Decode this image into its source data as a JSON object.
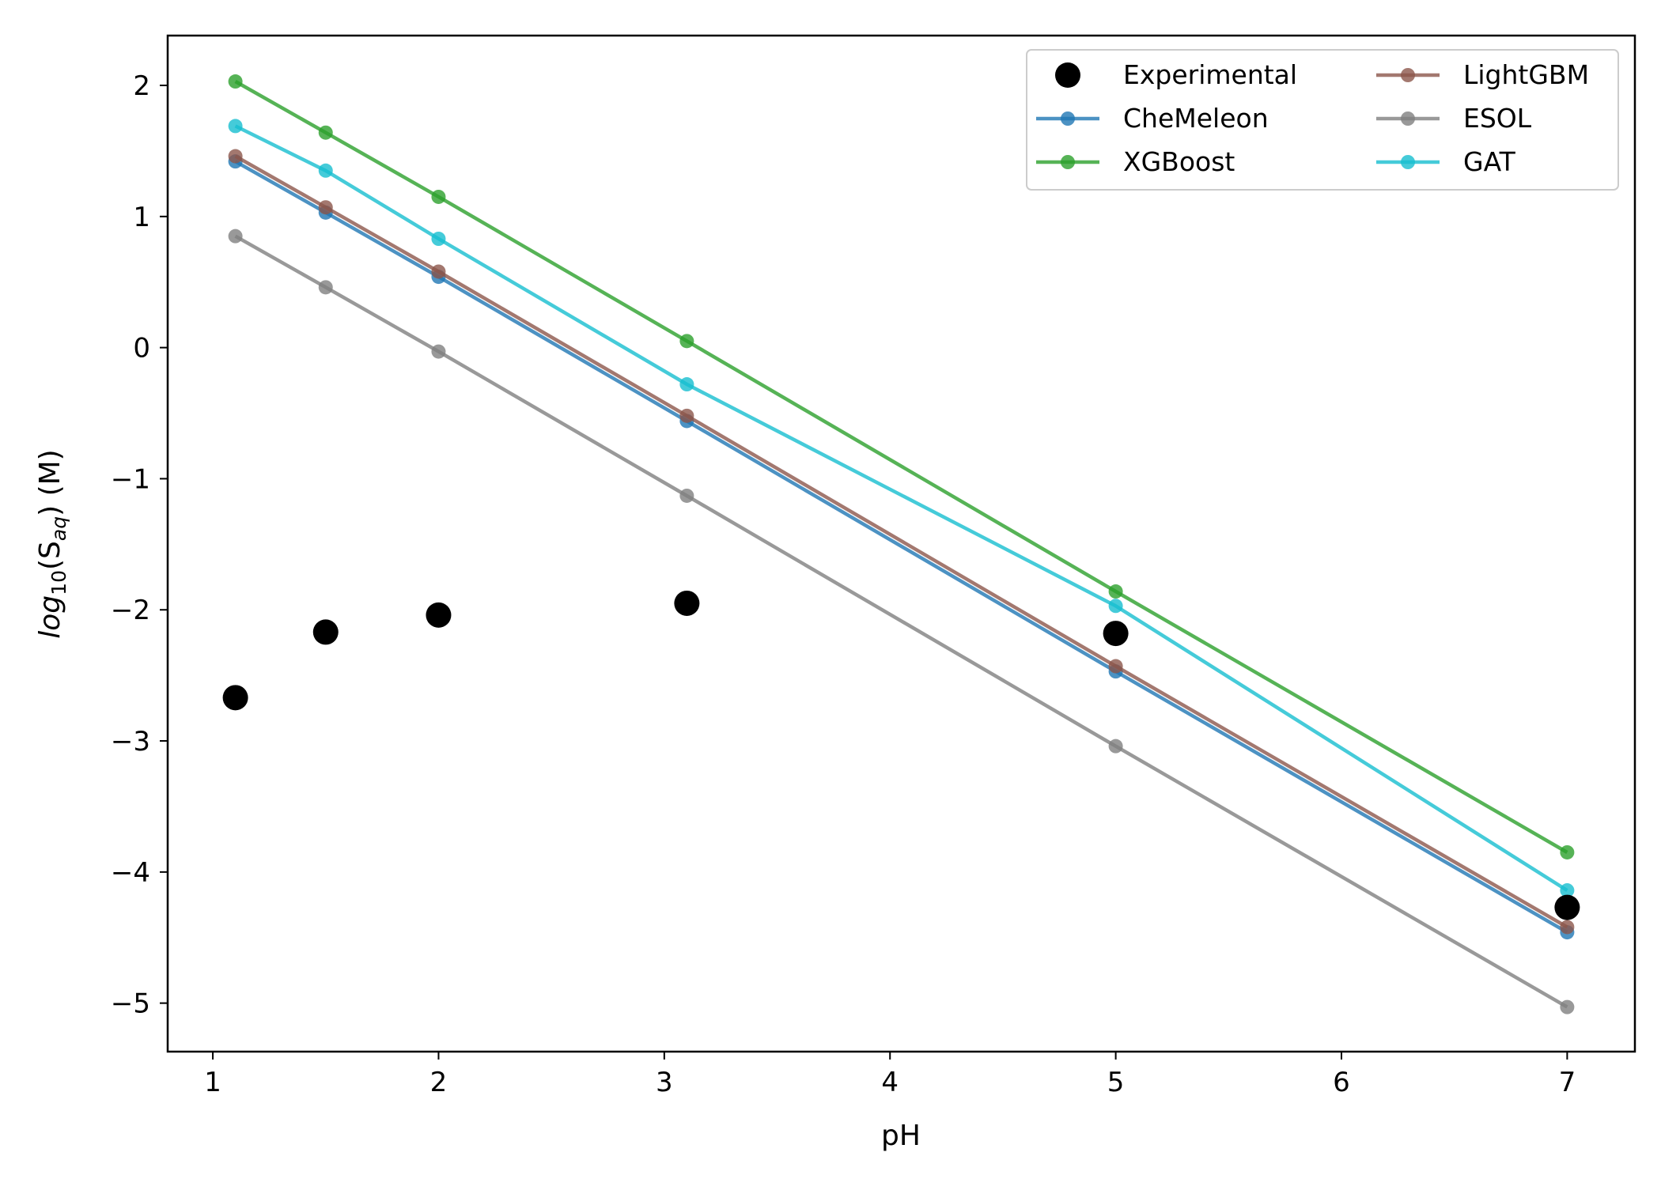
{
  "chart_data": {
    "type": "line",
    "xlabel": "pH",
    "ylabel": {
      "prefix": "log",
      "sub1": "10",
      "mid": "(S",
      "sub2": "aq",
      "suffix": ") (M)"
    },
    "xlim": [
      0.8,
      7.3
    ],
    "ylim": [
      -5.37,
      2.38
    ],
    "x_ticks": [
      {
        "value": 1,
        "label": "1"
      },
      {
        "value": 2,
        "label": "2"
      },
      {
        "value": 3,
        "label": "3"
      },
      {
        "value": 4,
        "label": "4"
      },
      {
        "value": 5,
        "label": "5"
      },
      {
        "value": 6,
        "label": "6"
      },
      {
        "value": 7,
        "label": "7"
      }
    ],
    "y_ticks": [
      {
        "value": 2,
        "label": "2"
      },
      {
        "value": 1,
        "label": "1"
      },
      {
        "value": 0,
        "label": "0"
      },
      {
        "value": -1,
        "label": "−1"
      },
      {
        "value": -2,
        "label": "−2"
      },
      {
        "value": -3,
        "label": "−3"
      },
      {
        "value": -4,
        "label": "−4"
      },
      {
        "value": -5,
        "label": "−5"
      }
    ],
    "grid": false,
    "legend_position": "top-right",
    "x": [
      1.1,
      1.5,
      2.0,
      3.1,
      5.0,
      7.0
    ],
    "series": [
      {
        "name": "Experimental",
        "kind": "scatter",
        "color": "#000000",
        "values": [
          -2.67,
          -2.17,
          -2.04,
          -1.95,
          -2.18,
          -4.27
        ]
      },
      {
        "name": "CheMeleon",
        "kind": "line",
        "color": "#1f77b4",
        "values": [
          1.42,
          1.03,
          0.54,
          -0.56,
          -2.47,
          -4.46
        ]
      },
      {
        "name": "XGBoost",
        "kind": "line",
        "color": "#2ca02c",
        "values": [
          2.03,
          1.64,
          1.15,
          0.05,
          -1.86,
          -3.85
        ]
      },
      {
        "name": "LightGBM",
        "kind": "line",
        "color": "#8c564b",
        "values": [
          1.46,
          1.07,
          0.58,
          -0.52,
          -2.43,
          -4.42
        ]
      },
      {
        "name": "ESOL",
        "kind": "line",
        "color": "#7f7f7f",
        "values": [
          0.85,
          0.46,
          -0.03,
          -1.13,
          -3.04,
          -5.03
        ]
      },
      {
        "name": "GAT",
        "kind": "line",
        "color": "#17becf",
        "values": [
          1.69,
          1.35,
          0.83,
          -0.28,
          -1.97,
          -4.14
        ]
      }
    ]
  }
}
